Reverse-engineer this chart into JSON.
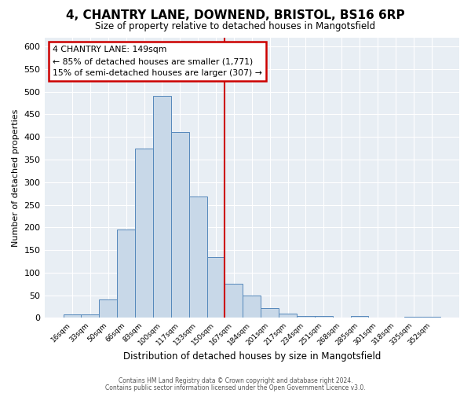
{
  "title": "4, CHANTRY LANE, DOWNEND, BRISTOL, BS16 6RP",
  "subtitle": "Size of property relative to detached houses in Mangotsfield",
  "xlabel": "Distribution of detached houses by size in Mangotsfield",
  "ylabel": "Number of detached properties",
  "bin_labels": [
    "16sqm",
    "33sqm",
    "50sqm",
    "66sqm",
    "83sqm",
    "100sqm",
    "117sqm",
    "133sqm",
    "150sqm",
    "167sqm",
    "184sqm",
    "201sqm",
    "217sqm",
    "234sqm",
    "251sqm",
    "268sqm",
    "285sqm",
    "301sqm",
    "318sqm",
    "335sqm",
    "352sqm"
  ],
  "bar_heights": [
    8,
    8,
    40,
    195,
    375,
    490,
    410,
    268,
    135,
    75,
    50,
    22,
    10,
    5,
    5,
    0,
    5,
    0,
    0,
    3,
    3
  ],
  "bar_color": "#c8d8e8",
  "bar_edge_color": "#5588bb",
  "vline_x": 8.5,
  "vline_color": "#cc0000",
  "ylim": [
    0,
    620
  ],
  "yticks": [
    0,
    50,
    100,
    150,
    200,
    250,
    300,
    350,
    400,
    450,
    500,
    550,
    600
  ],
  "annotation_title": "4 CHANTRY LANE: 149sqm",
  "annotation_line1": "← 85% of detached houses are smaller (1,771)",
  "annotation_line2": "15% of semi-detached houses are larger (307) →",
  "annotation_box_color": "#cc0000",
  "background_color": "#e8eef4",
  "footer_line1": "Contains HM Land Registry data © Crown copyright and database right 2024.",
  "footer_line2": "Contains public sector information licensed under the Open Government Licence v3.0."
}
